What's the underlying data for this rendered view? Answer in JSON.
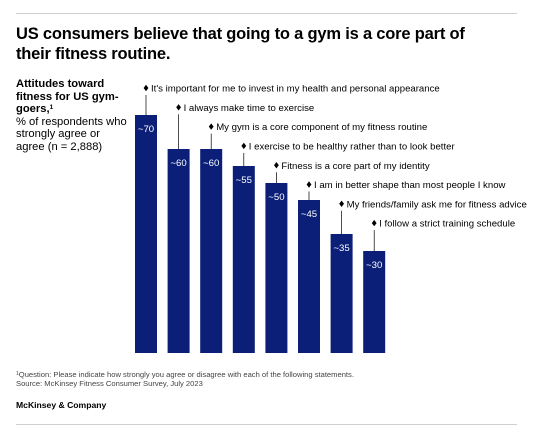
{
  "title": "US consumers believe that going to a gym is a core part of their fitness routine.",
  "side_label": {
    "bold": "Attitudes toward fitness for US gym-goers,",
    "footnote_mark": "1",
    "normal": "% of respondents who strongly agree or agree (n = 2,888)"
  },
  "footnote": {
    "mark": "1",
    "text": "Question: Please indicate how strongly you agree or disagree with each of the following statements."
  },
  "source": "Source: McKinsey Fitness Consumer Survey, July 2023",
  "brand": "McKinsey & Company",
  "colors": {
    "bar": "#0b1f78",
    "bar_label": "#ffffff",
    "leader": "#000000"
  },
  "chart_data": {
    "type": "bar",
    "categories": [
      "It's important for me to invest in my health and personal appearance",
      "I always make time to exercise",
      "My gym is a core component of my fitness routine",
      "I exercise to be healthy rather than to look better",
      "Fitness is a core part of my identity",
      "I am in better shape than most people I know",
      "My friends/family ask me for fitness advice",
      "I follow a strict training schedule"
    ],
    "values": [
      70,
      60,
      60,
      55,
      50,
      45,
      35,
      30
    ],
    "data_labels": [
      "~70",
      "~60",
      "~60",
      "~55",
      "~50",
      "~45",
      "~35",
      "~30"
    ],
    "ylabel": "",
    "xlabel": "",
    "grid": false,
    "legend": "none"
  }
}
